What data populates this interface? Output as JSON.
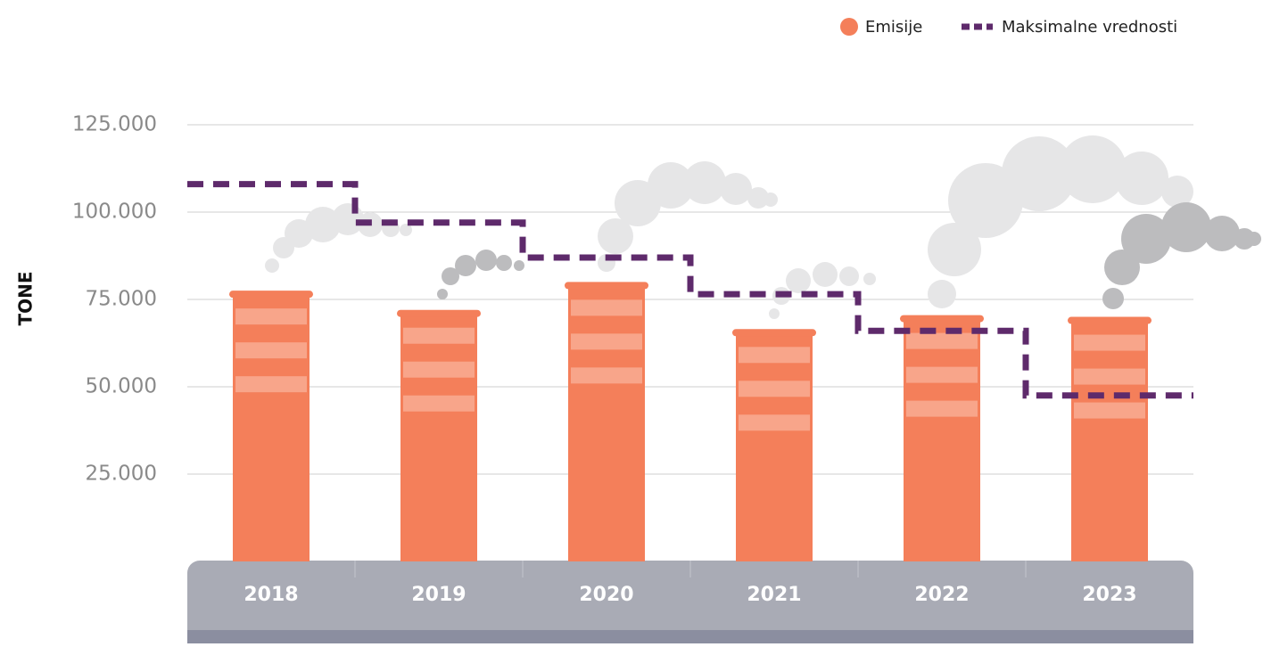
{
  "chart_data": {
    "type": "bar",
    "y_label": "TONE",
    "categories": [
      "2018",
      "2019",
      "2020",
      "2021",
      "2022",
      "2023"
    ],
    "series": [
      {
        "name": "Emisije",
        "type": "bar",
        "color": "#f47f5a",
        "values": [
          77000,
          71500,
          79500,
          66000,
          70000,
          69500
        ]
      },
      {
        "name": "Maksimalne vrednosti",
        "type": "step",
        "color": "#5e2a6b",
        "values": [
          108000,
          97000,
          87000,
          76500,
          66000,
          47500
        ]
      }
    ],
    "ylim": [
      0,
      125000
    ],
    "yticks": [
      {
        "value": 25000,
        "label": "25.000"
      },
      {
        "value": 50000,
        "label": "50.000"
      },
      {
        "value": 75000,
        "label": "75.000"
      },
      {
        "value": 100000,
        "label": "100.000"
      },
      {
        "value": 125000,
        "label": "125.000"
      }
    ],
    "grid": true,
    "legend": "top-right"
  }
}
